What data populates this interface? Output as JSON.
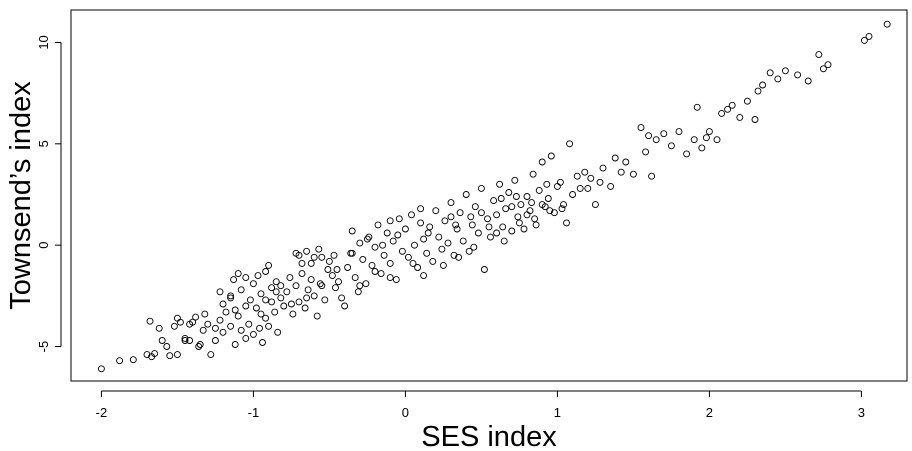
{
  "chart_data": {
    "type": "scatter",
    "title": "",
    "xlabel": "SES index",
    "ylabel": "Townsend’s index",
    "xlim": [
      -2.2,
      3.3
    ],
    "ylim": [
      -6.7,
      11.6
    ],
    "x_ticks": [
      -2,
      -1,
      0,
      1,
      2,
      3
    ],
    "y_ticks": [
      -5,
      0,
      5,
      10
    ],
    "x_tick_labels": [
      "-2",
      "-1",
      "0",
      "1",
      "2",
      "3"
    ],
    "y_tick_labels": [
      "-5",
      "0",
      "5",
      "10"
    ],
    "grid": false,
    "legend": "none",
    "marker": "open-circle",
    "color": "#000000",
    "series": [
      {
        "points": [
          [
            -2.0,
            -6.1
          ],
          [
            -1.88,
            -5.7
          ],
          [
            -1.79,
            -5.65
          ],
          [
            -1.7,
            -5.4
          ],
          [
            -1.67,
            -5.5
          ],
          [
            -1.65,
            -5.35
          ],
          [
            -1.68,
            -3.75
          ],
          [
            -1.62,
            -4.1
          ],
          [
            -1.57,
            -5.0
          ],
          [
            -1.55,
            -5.45
          ],
          [
            -1.5,
            -5.4
          ],
          [
            -1.52,
            -4.0
          ],
          [
            -1.48,
            -3.8
          ],
          [
            -1.45,
            -4.6
          ],
          [
            -1.42,
            -4.7
          ],
          [
            -1.4,
            -3.8
          ],
          [
            -1.38,
            -3.55
          ],
          [
            -1.36,
            -5.0
          ],
          [
            -1.33,
            -4.2
          ],
          [
            -1.3,
            -3.9
          ],
          [
            -1.28,
            -5.4
          ],
          [
            -1.25,
            -4.7
          ],
          [
            -1.22,
            -3.7
          ],
          [
            -1.2,
            -4.3
          ],
          [
            -1.18,
            -3.3
          ],
          [
            -1.15,
            -4.0
          ],
          [
            -1.12,
            -4.9
          ],
          [
            -1.1,
            -3.5
          ],
          [
            -1.08,
            -4.2
          ],
          [
            -1.05,
            -4.6
          ],
          [
            -1.03,
            -3.9
          ],
          [
            -1.0,
            -4.4
          ],
          [
            -0.98,
            -3.1
          ],
          [
            -0.96,
            -4.1
          ],
          [
            -0.94,
            -4.8
          ],
          [
            -0.92,
            -3.6
          ],
          [
            -0.9,
            -4.0
          ],
          [
            -0.88,
            -2.8
          ],
          [
            -0.86,
            -3.3
          ],
          [
            -0.84,
            -4.3
          ],
          [
            -1.0,
            -1.9
          ],
          [
            -0.97,
            -1.5
          ],
          [
            -0.95,
            -2.4
          ],
          [
            -0.92,
            -1.3
          ],
          [
            -1.02,
            -2.7
          ],
          [
            -1.05,
            -1.6
          ],
          [
            -1.08,
            -2.2
          ],
          [
            -1.1,
            -1.4
          ],
          [
            -1.15,
            -2.5
          ],
          [
            -1.2,
            -2.9
          ],
          [
            -1.22,
            -2.3
          ],
          [
            -1.13,
            -1.7
          ],
          [
            -0.9,
            -1.0
          ],
          [
            -0.88,
            -2.1
          ],
          [
            -0.85,
            -1.8
          ],
          [
            -0.82,
            -2.6
          ],
          [
            -0.8,
            -3.0
          ],
          [
            -0.78,
            -2.3
          ],
          [
            -0.76,
            -1.6
          ],
          [
            -0.74,
            -3.4
          ],
          [
            -0.72,
            -2.0
          ],
          [
            -0.7,
            -2.8
          ],
          [
            -0.68,
            -1.4
          ],
          [
            -0.66,
            -3.1
          ],
          [
            -0.64,
            -2.2
          ],
          [
            -0.62,
            -0.9
          ],
          [
            -0.6,
            -2.5
          ],
          [
            -0.58,
            -3.5
          ],
          [
            -0.56,
            -1.9
          ],
          [
            -0.55,
            -0.6
          ],
          [
            -0.53,
            -2.7
          ],
          [
            -0.51,
            -1.2
          ],
          [
            -0.7,
            -0.5
          ],
          [
            -0.72,
            -0.4
          ],
          [
            -0.68,
            -0.9
          ],
          [
            -0.65,
            -0.3
          ],
          [
            -0.6,
            -0.6
          ],
          [
            -0.57,
            -0.2
          ],
          [
            -0.5,
            -0.8
          ],
          [
            -0.48,
            -1.5
          ],
          [
            -0.46,
            -2.1
          ],
          [
            -0.44,
            -1.8
          ],
          [
            -0.42,
            -2.6
          ],
          [
            -0.4,
            -3.0
          ],
          [
            -0.38,
            -1.1
          ],
          [
            -0.36,
            -0.4
          ],
          [
            -0.35,
            0.7
          ],
          [
            -0.33,
            -1.6
          ],
          [
            -0.31,
            -2.3
          ],
          [
            -0.3,
            0.1
          ],
          [
            -0.28,
            -0.7
          ],
          [
            -0.26,
            -1.9
          ],
          [
            -0.24,
            0.4
          ],
          [
            -0.22,
            -1.0
          ],
          [
            -0.2,
            -0.1
          ],
          [
            -0.18,
            1.0
          ],
          [
            -0.16,
            -1.4
          ],
          [
            -0.14,
            -0.5
          ],
          [
            -0.12,
            0.6
          ],
          [
            -0.1,
            -0.9
          ],
          [
            -0.08,
            0.2
          ],
          [
            -0.06,
            -1.7
          ],
          [
            -0.04,
            1.3
          ],
          [
            -0.02,
            -0.3
          ],
          [
            0.0,
            0.8
          ],
          [
            0.02,
            -0.6
          ],
          [
            0.04,
            1.5
          ],
          [
            0.06,
            0.0
          ],
          [
            0.08,
            -1.1
          ],
          [
            0.1,
            1.1
          ],
          [
            0.12,
            0.3
          ],
          [
            0.14,
            -0.4
          ],
          [
            0.16,
            0.9
          ],
          [
            0.18,
            -0.8
          ],
          [
            0.2,
            1.7
          ],
          [
            0.22,
            0.4
          ],
          [
            0.24,
            -0.2
          ],
          [
            0.26,
            1.2
          ],
          [
            0.28,
            0.1
          ],
          [
            0.3,
            2.1
          ],
          [
            0.32,
            -0.5
          ],
          [
            0.34,
            0.8
          ],
          [
            0.36,
            1.6
          ],
          [
            0.38,
            0.2
          ],
          [
            0.4,
            2.5
          ],
          [
            0.42,
            -0.3
          ],
          [
            0.44,
            1.0
          ],
          [
            0.46,
            1.9
          ],
          [
            0.48,
            0.6
          ],
          [
            0.5,
            2.8
          ],
          [
            0.52,
            -1.2
          ],
          [
            0.54,
            1.3
          ],
          [
            0.56,
            0.4
          ],
          [
            0.58,
            2.2
          ],
          [
            0.6,
            1.5
          ],
          [
            0.62,
            3.0
          ],
          [
            0.64,
            0.9
          ],
          [
            0.66,
            1.8
          ],
          [
            0.68,
            2.6
          ],
          [
            0.7,
            0.7
          ],
          [
            0.72,
            3.2
          ],
          [
            0.74,
            1.4
          ],
          [
            0.76,
            2.0
          ],
          [
            0.78,
            0.8
          ],
          [
            0.8,
            2.4
          ],
          [
            0.82,
            1.7
          ],
          [
            0.84,
            3.5
          ],
          [
            0.86,
            1.0
          ],
          [
            0.88,
            2.7
          ],
          [
            0.9,
            4.1
          ],
          [
            0.92,
            1.9
          ],
          [
            0.94,
            2.3
          ],
          [
            0.96,
            4.4
          ],
          [
            0.98,
            1.6
          ],
          [
            1.0,
            2.9
          ],
          [
            1.02,
            3.1
          ],
          [
            1.04,
            2.0
          ],
          [
            1.06,
            1.1
          ],
          [
            1.08,
            5.0
          ],
          [
            1.1,
            2.5
          ],
          [
            1.15,
            2.8
          ],
          [
            1.18,
            3.6
          ],
          [
            1.22,
            3.3
          ],
          [
            1.25,
            2.0
          ],
          [
            1.3,
            3.8
          ],
          [
            1.35,
            2.9
          ],
          [
            1.38,
            4.3
          ],
          [
            1.42,
            3.6
          ],
          [
            1.45,
            4.1
          ],
          [
            1.5,
            3.5
          ],
          [
            1.55,
            5.8
          ],
          [
            1.58,
            4.6
          ],
          [
            1.6,
            5.4
          ],
          [
            1.62,
            3.4
          ],
          [
            1.65,
            5.2
          ],
          [
            1.7,
            5.5
          ],
          [
            1.75,
            4.9
          ],
          [
            1.8,
            5.6
          ],
          [
            1.85,
            4.5
          ],
          [
            1.9,
            5.2
          ],
          [
            1.92,
            6.8
          ],
          [
            1.95,
            4.8
          ],
          [
            1.98,
            5.3
          ],
          [
            2.0,
            5.6
          ],
          [
            2.05,
            5.2
          ],
          [
            2.08,
            6.5
          ],
          [
            2.12,
            6.7
          ],
          [
            2.15,
            6.9
          ],
          [
            2.2,
            6.3
          ],
          [
            2.25,
            7.1
          ],
          [
            2.3,
            6.2
          ],
          [
            2.32,
            7.6
          ],
          [
            2.35,
            7.9
          ],
          [
            2.4,
            8.5
          ],
          [
            2.45,
            8.2
          ],
          [
            2.5,
            8.6
          ],
          [
            2.58,
            8.4
          ],
          [
            2.65,
            8.1
          ],
          [
            2.72,
            9.4
          ],
          [
            2.75,
            8.7
          ],
          [
            2.78,
            8.9
          ],
          [
            3.02,
            10.1
          ],
          [
            3.05,
            10.3
          ],
          [
            3.17,
            10.9
          ],
          [
            -0.3,
            -2.0
          ],
          [
            -0.2,
            -1.3
          ],
          [
            -0.1,
            -1.6
          ],
          [
            0.05,
            -0.9
          ],
          [
            0.12,
            -1.5
          ],
          [
            0.25,
            -1.0
          ],
          [
            0.35,
            -0.6
          ],
          [
            0.45,
            -0.1
          ],
          [
            0.55,
            0.9
          ],
          [
            0.65,
            0.2
          ],
          [
            0.75,
            1.1
          ],
          [
            0.85,
            1.3
          ],
          [
            0.95,
            1.7
          ],
          [
            -0.45,
            -1.2
          ],
          [
            -0.55,
            -2.0
          ],
          [
            -0.65,
            -2.6
          ],
          [
            -0.75,
            -2.9
          ],
          [
            -0.85,
            -2.3
          ],
          [
            -0.95,
            -3.4
          ],
          [
            -1.05,
            -3.0
          ],
          [
            -1.15,
            -2.6
          ],
          [
            -1.25,
            -4.1
          ],
          [
            -1.35,
            -4.9
          ],
          [
            -1.45,
            -4.7
          ],
          [
            -0.05,
            0.5
          ],
          [
            0.15,
            0.6
          ],
          [
            0.33,
            1.0
          ],
          [
            0.43,
            1.4
          ],
          [
            0.6,
            0.6
          ],
          [
            0.7,
            1.9
          ],
          [
            0.8,
            1.5
          ],
          [
            0.9,
            2.0
          ],
          [
            -0.25,
            0.3
          ],
          [
            -0.15,
            0.0
          ],
          [
            -0.35,
            -0.4
          ],
          [
            -0.47,
            -0.5
          ],
          [
            -0.62,
            -1.7
          ],
          [
            -0.82,
            -2.0
          ],
          [
            -0.92,
            -2.7
          ],
          [
            -1.12,
            -3.2
          ],
          [
            -1.32,
            -3.4
          ],
          [
            -1.6,
            -4.7
          ],
          [
            -1.5,
            -3.6
          ],
          [
            -1.42,
            -3.9
          ],
          [
            -0.1,
            1.2
          ],
          [
            0.1,
            1.8
          ],
          [
            0.3,
            1.4
          ],
          [
            0.5,
            1.6
          ],
          [
            0.63,
            2.3
          ],
          [
            0.73,
            2.4
          ],
          [
            0.83,
            2.1
          ],
          [
            0.93,
            3.0
          ],
          [
            1.03,
            1.8
          ],
          [
            1.13,
            3.4
          ],
          [
            1.2,
            2.8
          ],
          [
            1.28,
            3.1
          ]
        ]
      }
    ]
  }
}
